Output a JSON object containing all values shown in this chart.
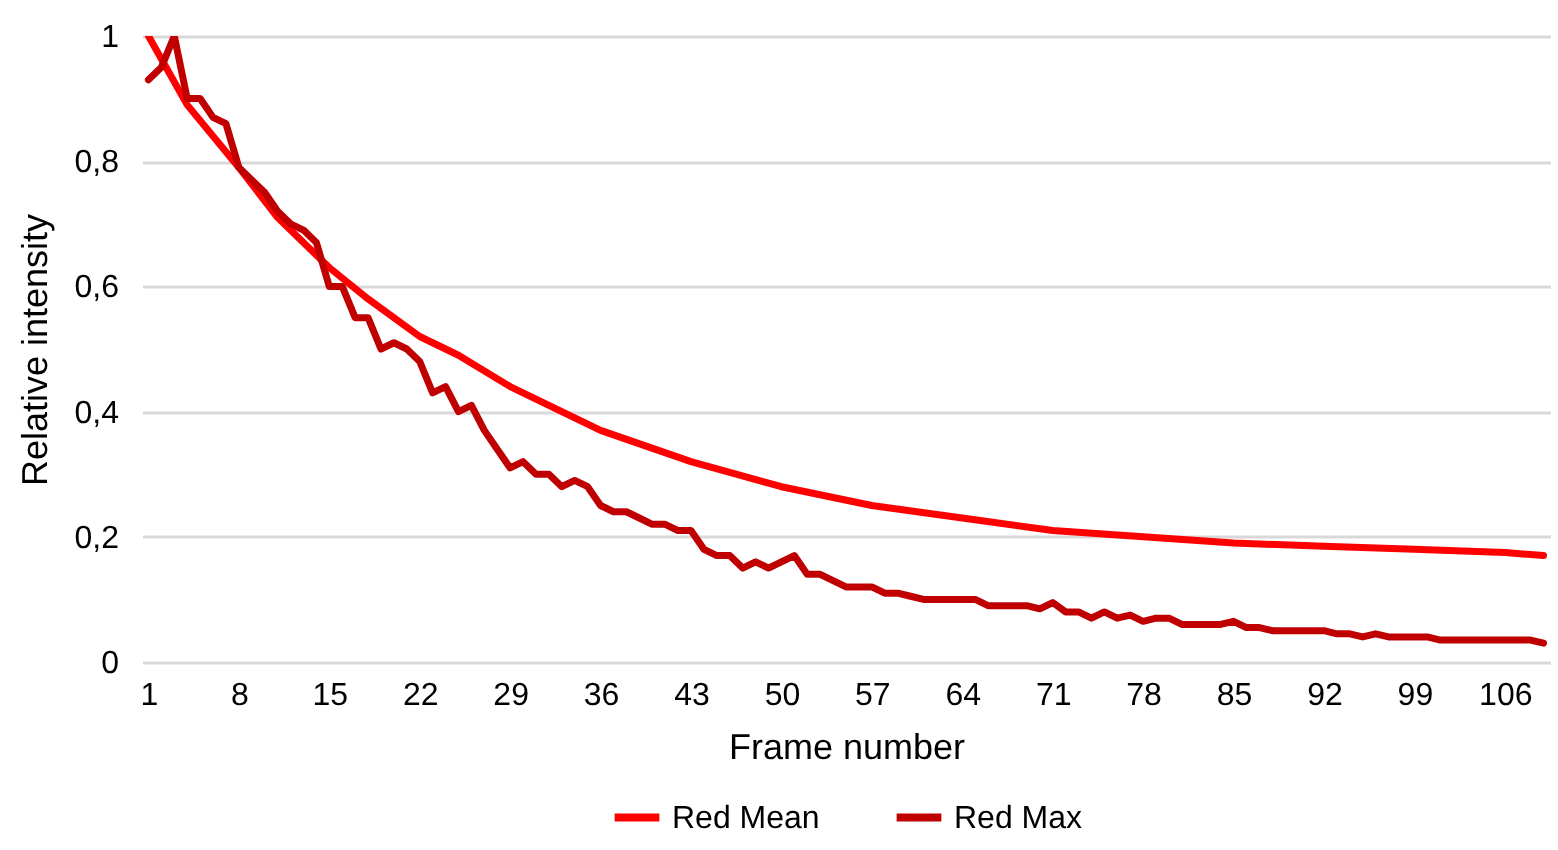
{
  "chart_data": {
    "type": "line",
    "xlabel": "Frame number",
    "ylabel": "Relative intensity",
    "xlim": [
      0.5,
      109.5
    ],
    "xticks": [
      1,
      8,
      15,
      22,
      29,
      36,
      43,
      50,
      57,
      64,
      71,
      78,
      85,
      92,
      99,
      106
    ],
    "ylim": [
      0,
      1
    ],
    "yticks": [
      0,
      {
        "value": 0.2,
        "label": "0,2"
      },
      {
        "value": 0.4,
        "label": "0,4"
      },
      {
        "value": 0.6,
        "label": "0,6"
      },
      {
        "value": 0.8,
        "label": "0,8"
      },
      1
    ],
    "grid": "y",
    "legend": "bottom",
    "line_style": "solid",
    "marker": "none",
    "series": [
      {
        "name": "Red Mean",
        "color": "#ff0000",
        "x": [
          1,
          4,
          8,
          11,
          15,
          18,
          22,
          25,
          29,
          36,
          43,
          50,
          57,
          64,
          71,
          78,
          85,
          92,
          99,
          106,
          109
        ],
        "values": [
          1.0,
          0.89,
          0.79,
          0.71,
          0.63,
          0.58,
          0.52,
          0.49,
          0.44,
          0.37,
          0.32,
          0.28,
          0.25,
          0.23,
          0.21,
          0.2,
          0.19,
          0.185,
          0.18,
          0.175,
          0.17
        ]
      },
      {
        "name": "Red Max",
        "color": "#c00000",
        "x": [
          1,
          2,
          3,
          4,
          5,
          6,
          7,
          8,
          9,
          10,
          11,
          12,
          13,
          14,
          15,
          16,
          17,
          18,
          19,
          20,
          21,
          22,
          23,
          24,
          25,
          26,
          27,
          28,
          29,
          30,
          31,
          32,
          33,
          34,
          35,
          36,
          37,
          38,
          39,
          40,
          41,
          42,
          43,
          44,
          45,
          46,
          47,
          48,
          49,
          50,
          51,
          52,
          53,
          54,
          55,
          56,
          57,
          58,
          59,
          60,
          61,
          62,
          63,
          64,
          65,
          66,
          67,
          68,
          69,
          70,
          71,
          72,
          73,
          74,
          75,
          76,
          77,
          78,
          79,
          80,
          81,
          82,
          83,
          84,
          85,
          86,
          87,
          88,
          89,
          90,
          91,
          92,
          93,
          94,
          95,
          96,
          97,
          98,
          99,
          100,
          101,
          102,
          103,
          104,
          105,
          106,
          107,
          108,
          109
        ],
        "values": [
          0.93,
          0.95,
          1.0,
          0.9,
          0.9,
          0.87,
          0.86,
          0.79,
          0.77,
          0.75,
          0.72,
          0.7,
          0.69,
          0.67,
          0.6,
          0.6,
          0.55,
          0.55,
          0.5,
          0.51,
          0.5,
          0.48,
          0.43,
          0.44,
          0.4,
          0.41,
          0.37,
          0.34,
          0.31,
          0.32,
          0.3,
          0.3,
          0.28,
          0.29,
          0.28,
          0.25,
          0.24,
          0.24,
          0.23,
          0.22,
          0.22,
          0.21,
          0.21,
          0.18,
          0.17,
          0.17,
          0.15,
          0.16,
          0.15,
          0.16,
          0.17,
          0.14,
          0.14,
          0.13,
          0.12,
          0.12,
          0.12,
          0.11,
          0.11,
          0.105,
          0.1,
          0.1,
          0.1,
          0.1,
          0.1,
          0.09,
          0.09,
          0.09,
          0.09,
          0.085,
          0.095,
          0.08,
          0.08,
          0.07,
          0.08,
          0.07,
          0.075,
          0.065,
          0.07,
          0.07,
          0.06,
          0.06,
          0.06,
          0.06,
          0.065,
          0.055,
          0.055,
          0.05,
          0.05,
          0.05,
          0.05,
          0.05,
          0.045,
          0.045,
          0.04,
          0.045,
          0.04,
          0.04,
          0.04,
          0.04,
          0.035,
          0.035,
          0.035,
          0.035,
          0.035,
          0.035,
          0.035,
          0.035,
          0.03
        ]
      }
    ]
  }
}
